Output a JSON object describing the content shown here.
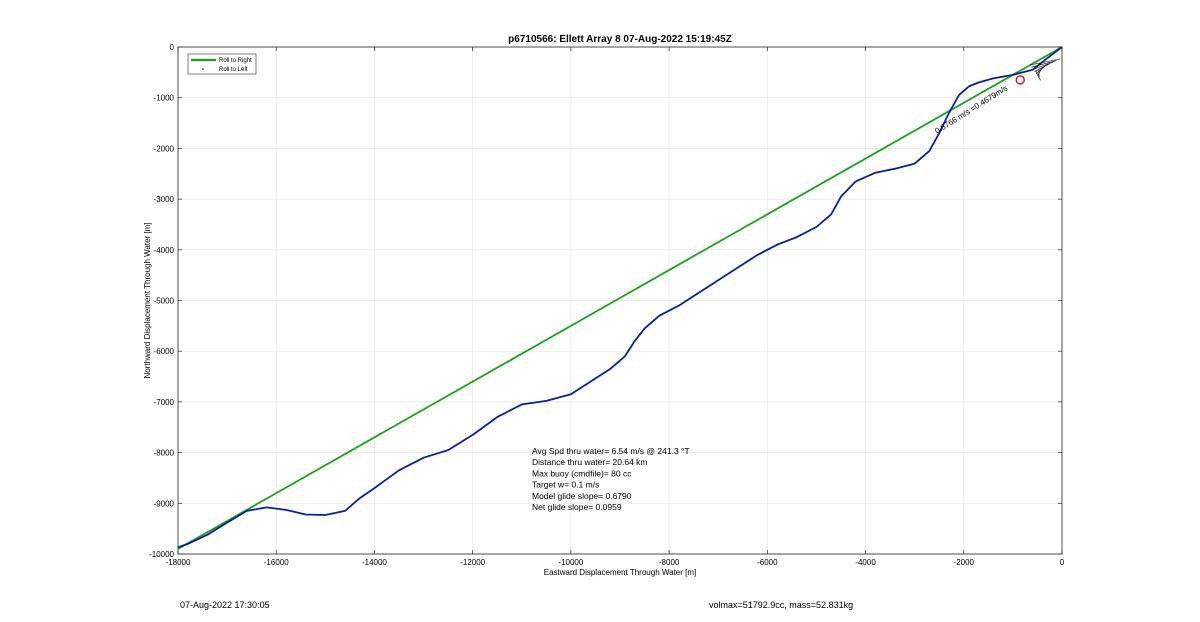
{
  "chart_data": {
    "type": "line",
    "title": "p6710566: Ellett Array 8 07-Aug-2022 15:19:45Z",
    "xlabel": "Eastward Displacement Through Water [m]",
    "ylabel": "Northward Displacement Through Water [m]",
    "xlim": [
      -18000,
      0
    ],
    "ylim": [
      -10000,
      0
    ],
    "xticks": [
      "-18000",
      "-16000",
      "-14000",
      "-12000",
      "-10000",
      "-8000",
      "-6000",
      "-4000",
      "-2000",
      "0"
    ],
    "yticks": [
      "0",
      "-1000",
      "-2000",
      "-3000",
      "-4000",
      "-5000",
      "-6000",
      "-7000",
      "-8000",
      "-9000",
      "-10000"
    ],
    "grid": true,
    "legend": {
      "placement": "top-left",
      "entries": [
        "Roll to Right",
        "Roll to Left"
      ]
    },
    "colors": {
      "track": "#0a1fa0",
      "model": "#1ea01e",
      "target_marker": "#e01010"
    },
    "series": [
      {
        "name": "Roll to Right",
        "points": [
          [
            0,
            0
          ],
          [
            -18000,
            -9900
          ]
        ]
      },
      {
        "points": [
          [
            0,
            0
          ],
          [
            -300,
            -220
          ],
          [
            -600,
            -450
          ],
          [
            -1000,
            -550
          ],
          [
            -1400,
            -620
          ],
          [
            -1700,
            -700
          ],
          [
            -1900,
            -780
          ],
          [
            -2100,
            -950
          ],
          [
            -2300,
            -1300
          ],
          [
            -2500,
            -1700
          ],
          [
            -2700,
            -2050
          ],
          [
            -3000,
            -2300
          ],
          [
            -3400,
            -2400
          ],
          [
            -3800,
            -2480
          ],
          [
            -4200,
            -2650
          ],
          [
            -4500,
            -2950
          ],
          [
            -4700,
            -3300
          ],
          [
            -5000,
            -3550
          ],
          [
            -5400,
            -3750
          ],
          [
            -5800,
            -3900
          ],
          [
            -6200,
            -4100
          ],
          [
            -6600,
            -4350
          ],
          [
            -7000,
            -4600
          ],
          [
            -7400,
            -4850
          ],
          [
            -7800,
            -5100
          ],
          [
            -8200,
            -5300
          ],
          [
            -8500,
            -5550
          ],
          [
            -8700,
            -5800
          ],
          [
            -8900,
            -6100
          ],
          [
            -9200,
            -6350
          ],
          [
            -9600,
            -6600
          ],
          [
            -10000,
            -6850
          ],
          [
            -10500,
            -6980
          ],
          [
            -11000,
            -7050
          ],
          [
            -11500,
            -7300
          ],
          [
            -12000,
            -7650
          ],
          [
            -12500,
            -7950
          ],
          [
            -13000,
            -8100
          ],
          [
            -13500,
            -8350
          ],
          [
            -14000,
            -8700
          ],
          [
            -14300,
            -8900
          ],
          [
            -14600,
            -9150
          ],
          [
            -15000,
            -9230
          ],
          [
            -15400,
            -9220
          ],
          [
            -15800,
            -9130
          ],
          [
            -16200,
            -9080
          ],
          [
            -16600,
            -9150
          ],
          [
            -17000,
            -9380
          ],
          [
            -17400,
            -9620
          ],
          [
            -17800,
            -9800
          ],
          [
            -18000,
            -9870
          ]
        ]
      }
    ],
    "annotations": [
      "Avg Spd thru water=  6.54 m/s @ 241.3 °T",
      "Distance thru water= 20.64 km",
      "Max buoy (cmdfile)= 80 cc",
      "Target w= 0.1 m/s",
      "Model glide slope= 0.6790",
      "Net glide slope= 0.0959"
    ],
    "rotated_label": "0.8766 m/s =0.4679m/s",
    "target_marker": [
      -850,
      -650
    ]
  },
  "footer": {
    "timestamp": "07-Aug-2022 17:30:05",
    "volume_mass": "volmax=51792.9cc, mass=52.831kg"
  }
}
